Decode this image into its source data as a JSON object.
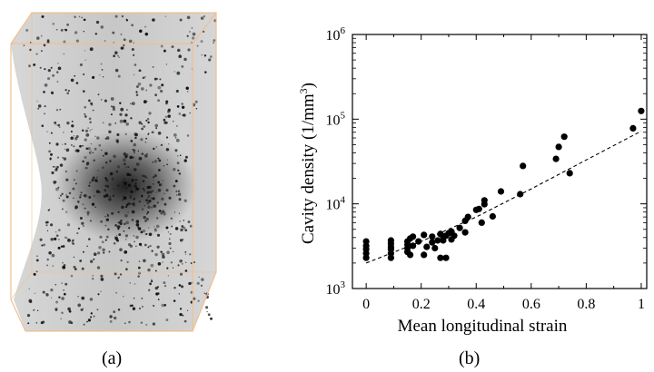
{
  "figure": {
    "panel_a_caption": "(a)",
    "panel_b_caption": "(b)"
  },
  "specimen_render": {
    "description_colors": {
      "box_edge": "#f0c090",
      "matrix_gray": "#c8c8c8",
      "cavity": "#111111"
    }
  },
  "chart_data": {
    "type": "scatter",
    "title": "",
    "xlabel": "Mean longitudinal strain",
    "ylabel": "Cavity density (1/mm",
    "ylabel_superscript": "3",
    "ylabel_suffix": ")",
    "x_scale": "linear",
    "y_scale": "log",
    "xlim": [
      -0.05,
      1.02
    ],
    "ylim": [
      1000,
      1000000
    ],
    "x_ticks": [
      0,
      0.2,
      0.4,
      0.6,
      0.8,
      1
    ],
    "x_tick_labels": [
      "0",
      "0.2",
      "0.4",
      "0.6",
      "0.8",
      "1"
    ],
    "y_ticks": [
      1000,
      10000,
      100000,
      1000000
    ],
    "y_tick_label_base": "10",
    "y_tick_label_exponents": [
      "3",
      "4",
      "5",
      "6"
    ],
    "grid": false,
    "legend": "none",
    "series": [
      {
        "marker": "filled-circle",
        "color": "#000000",
        "points": [
          [
            0,
            2300
          ],
          [
            0,
            2600
          ],
          [
            0,
            2900
          ],
          [
            0,
            3200
          ],
          [
            0,
            3600
          ],
          [
            0.09,
            2300
          ],
          [
            0.09,
            2600
          ],
          [
            0.09,
            2900
          ],
          [
            0.09,
            3100
          ],
          [
            0.09,
            3400
          ],
          [
            0.09,
            3700
          ],
          [
            0.15,
            2700
          ],
          [
            0.15,
            3000
          ],
          [
            0.15,
            3300
          ],
          [
            0.15,
            3600
          ],
          [
            0.16,
            2500
          ],
          [
            0.16,
            3900
          ],
          [
            0.17,
            4100
          ],
          [
            0.17,
            3200
          ],
          [
            0.19,
            3600
          ],
          [
            0.21,
            2500
          ],
          [
            0.21,
            4300
          ],
          [
            0.22,
            3100
          ],
          [
            0.24,
            4100
          ],
          [
            0.24,
            3500
          ],
          [
            0.25,
            3000
          ],
          [
            0.26,
            3700
          ],
          [
            0.27,
            4400
          ],
          [
            0.27,
            2300
          ],
          [
            0.28,
            3700
          ],
          [
            0.28,
            4100
          ],
          [
            0.29,
            2300
          ],
          [
            0.29,
            4200
          ],
          [
            0.3,
            4500
          ],
          [
            0.31,
            4700
          ],
          [
            0.31,
            3800
          ],
          [
            0.32,
            4200
          ],
          [
            0.34,
            5200
          ],
          [
            0.36,
            4600
          ],
          [
            0.36,
            6300
          ],
          [
            0.37,
            7000
          ],
          [
            0.4,
            8500
          ],
          [
            0.41,
            8700
          ],
          [
            0.42,
            6000
          ],
          [
            0.43,
            9900
          ],
          [
            0.43,
            11000
          ],
          [
            0.46,
            7100
          ],
          [
            0.49,
            14000
          ],
          [
            0.56,
            13000
          ],
          [
            0.57,
            28000
          ],
          [
            0.69,
            34000
          ],
          [
            0.7,
            47000
          ],
          [
            0.72,
            62000
          ],
          [
            0.74,
            23000
          ],
          [
            0.97,
            78000
          ],
          [
            1.0,
            125000
          ]
        ]
      }
    ],
    "trendline": {
      "style": "dashed",
      "color": "#000000",
      "points": [
        [
          0,
          2000
        ],
        [
          0.2,
          3600
        ],
        [
          0.4,
          7000
        ],
        [
          0.6,
          15000
        ],
        [
          0.8,
          33000
        ],
        [
          1.0,
          72000
        ]
      ]
    }
  }
}
